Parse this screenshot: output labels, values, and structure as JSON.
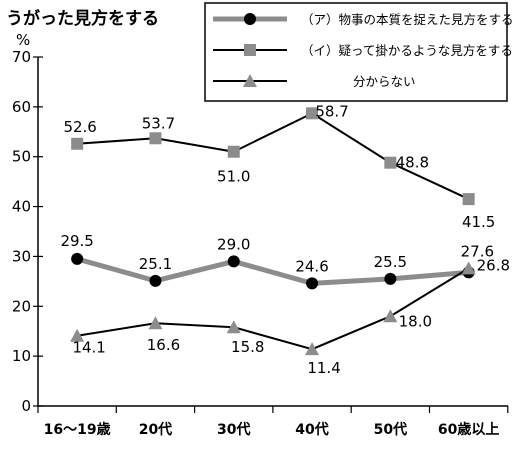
{
  "chart_data": {
    "type": "line",
    "title": "うがった見方をする",
    "ylabel": "%",
    "ylim": [
      0,
      70
    ],
    "yticks": [
      0,
      10,
      20,
      30,
      40,
      50,
      60,
      70
    ],
    "categories": [
      "16～19歳",
      "20代",
      "30代",
      "40代",
      "50代",
      "60歳以上"
    ],
    "legend_position": "top-right",
    "series": [
      {
        "name": "（ア）物事の本質を捉えた見方をする",
        "values": [
          29.5,
          25.1,
          29.0,
          24.6,
          25.5,
          26.8
        ],
        "labels": [
          "29.5",
          "25.1",
          "29.0",
          "24.6",
          "25.5",
          "26.8"
        ],
        "marker": "circle",
        "line_color": "#8c8c8c",
        "marker_color": "#000000"
      },
      {
        "name": "（イ）疑って掛かるような見方をする",
        "values": [
          52.6,
          53.7,
          51.0,
          58.7,
          48.8,
          41.5
        ],
        "labels": [
          "52.6",
          "53.7",
          "51.0",
          "58.7",
          "48.8",
          "41.5"
        ],
        "marker": "square",
        "line_color": "#000000",
        "marker_color": "#8c8c8c"
      },
      {
        "name": "分からない",
        "values": [
          14.1,
          16.6,
          15.8,
          11.4,
          18.0,
          27.6
        ],
        "labels": [
          "14.1",
          "16.6",
          "15.8",
          "11.4",
          "18.0",
          "27.6"
        ],
        "marker": "triangle",
        "line_color": "#000000",
        "marker_color": "#8c8c8c"
      }
    ]
  }
}
